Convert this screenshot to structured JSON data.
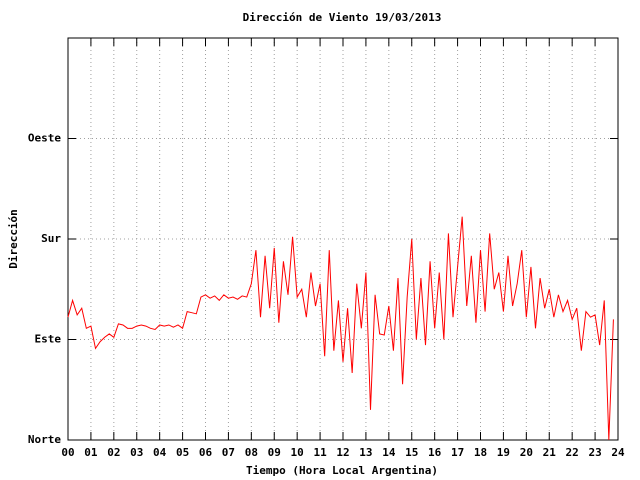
{
  "chart_data": {
    "type": "line",
    "title": "Dirección de Viento 19/03/2013",
    "x_label": "Tiempo (Hora Local Argentina)",
    "y_label": "Dirección",
    "color": "#ff0000",
    "grid": true,
    "xlim": [
      0,
      24
    ],
    "ylim": [
      0,
      360
    ],
    "xticks": [
      {
        "value": 0,
        "label": "00"
      },
      {
        "value": 1,
        "label": "01"
      },
      {
        "value": 2,
        "label": "02"
      },
      {
        "value": 3,
        "label": "03"
      },
      {
        "value": 4,
        "label": "04"
      },
      {
        "value": 5,
        "label": "05"
      },
      {
        "value": 6,
        "label": "06"
      },
      {
        "value": 7,
        "label": "07"
      },
      {
        "value": 8,
        "label": "08"
      },
      {
        "value": 9,
        "label": "09"
      },
      10,
      11,
      12,
      13,
      14,
      15,
      16,
      17,
      18,
      19,
      20,
      21,
      22,
      23,
      24
    ],
    "yticks": [
      {
        "value": 0,
        "label": "Norte"
      },
      {
        "value": 90,
        "label": "Este"
      },
      {
        "value": 180,
        "label": "Sur"
      },
      {
        "value": 270,
        "label": "Oeste"
      }
    ],
    "x": [
      0.0,
      0.2,
      0.4,
      0.6,
      0.8,
      1.0,
      1.2,
      1.4,
      1.6,
      1.8,
      2.0,
      2.2,
      2.4,
      2.6,
      2.8,
      3.0,
      3.2,
      3.4,
      3.6,
      3.8,
      4.0,
      4.2,
      4.4,
      4.6,
      4.8,
      5.0,
      5.2,
      5.4,
      5.6,
      5.8,
      6.0,
      6.2,
      6.4,
      6.6,
      6.8,
      7.0,
      7.2,
      7.4,
      7.6,
      7.8,
      8.0,
      8.2,
      8.4,
      8.6,
      8.8,
      9.0,
      9.2,
      9.4,
      9.6,
      9.8,
      10.0,
      10.2,
      10.4,
      10.6,
      10.8,
      11.0,
      11.2,
      11.4,
      11.6,
      11.8,
      12.0,
      12.2,
      12.4,
      12.6,
      12.8,
      13.0,
      13.2,
      13.4,
      13.6,
      13.8,
      14.0,
      14.2,
      14.4,
      14.6,
      14.8,
      15.0,
      15.2,
      15.4,
      15.6,
      15.8,
      16.0,
      16.2,
      16.4,
      16.6,
      16.8,
      17.0,
      17.2,
      17.4,
      17.6,
      17.8,
      18.0,
      18.2,
      18.4,
      18.6,
      18.8,
      19.0,
      19.2,
      19.4,
      19.6,
      19.8,
      20.0,
      20.2,
      20.4,
      20.6,
      20.8,
      21.0,
      21.2,
      21.4,
      21.6,
      21.8,
      22.0,
      22.2,
      22.4,
      22.6,
      22.8,
      23.0,
      23.2,
      23.4,
      23.6,
      23.8
    ],
    "values": [
      110,
      125,
      112,
      118,
      100,
      102,
      82,
      88,
      92,
      95,
      92,
      104,
      103,
      100,
      100,
      102,
      103,
      102,
      100,
      99,
      103,
      102,
      103,
      101,
      103,
      100,
      115,
      114,
      113,
      128,
      130,
      127,
      129,
      125,
      130,
      127,
      128,
      126,
      129,
      128,
      140,
      170,
      110,
      165,
      118,
      172,
      105,
      160,
      130,
      182,
      128,
      135,
      110,
      150,
      120,
      140,
      75,
      170,
      80,
      125,
      70,
      118,
      60,
      140,
      100,
      150,
      27,
      130,
      95,
      94,
      120,
      80,
      145,
      50,
      128,
      180,
      90,
      145,
      85,
      160,
      100,
      150,
      90,
      185,
      110,
      155,
      200,
      120,
      165,
      105,
      170,
      115,
      185,
      135,
      150,
      115,
      165,
      120,
      140,
      170,
      110,
      155,
      100,
      145,
      118,
      135,
      110,
      130,
      115,
      125,
      108,
      118,
      80,
      115,
      110,
      112,
      85,
      125,
      0,
      108
    ]
  }
}
